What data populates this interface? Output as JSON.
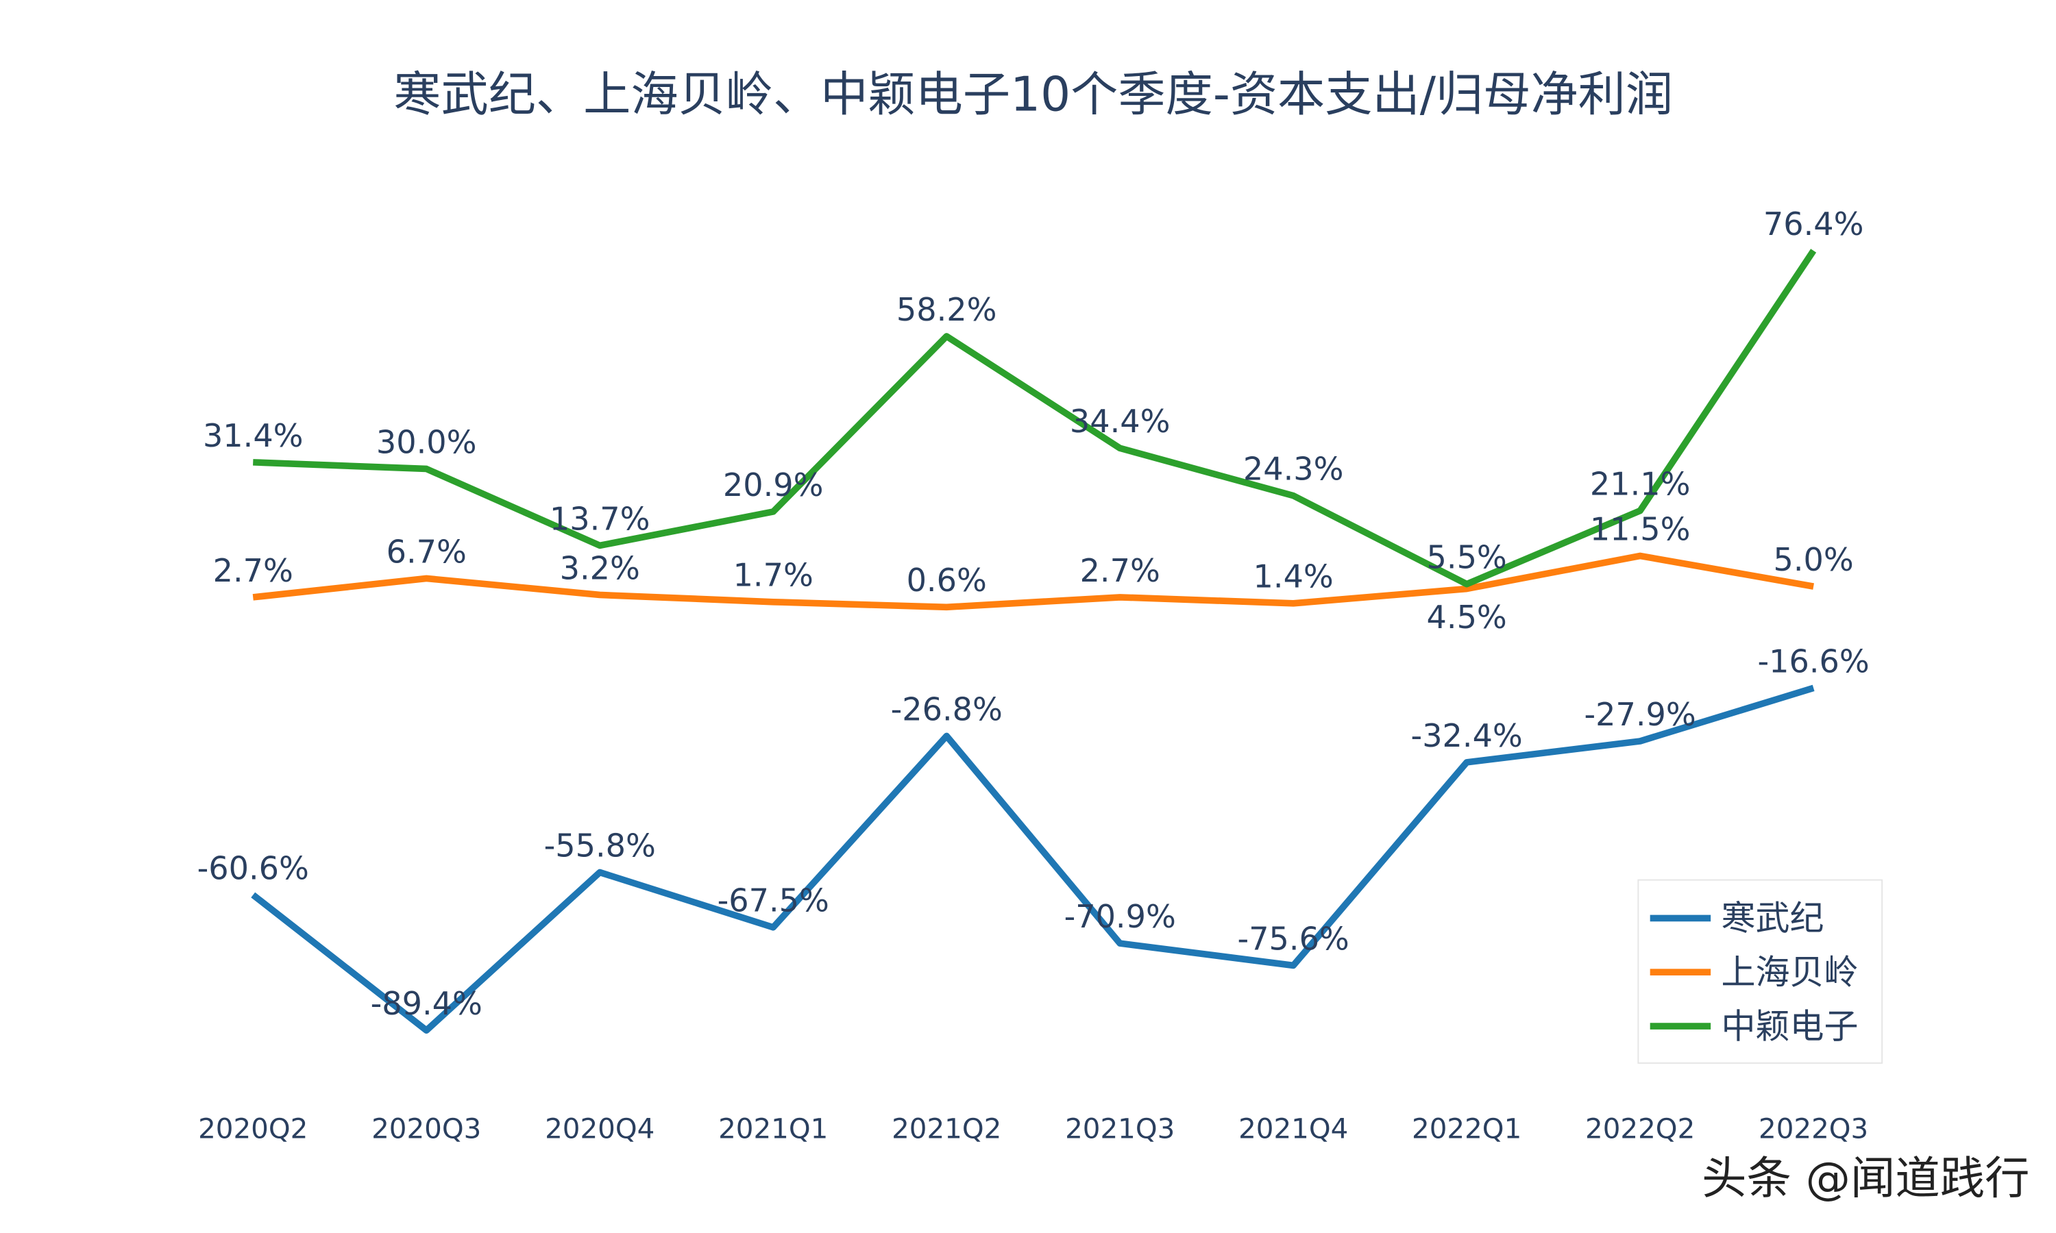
{
  "chart_data": {
    "type": "line",
    "title": "寒武纪、上海贝岭、中颖电子10个季度-资本支出/归母净利润",
    "xlabel": "",
    "ylabel": "",
    "categories": [
      "2020Q2",
      "2020Q3",
      "2020Q4",
      "2021Q1",
      "2021Q2",
      "2021Q3",
      "2021Q4",
      "2022Q1",
      "2022Q2",
      "2022Q3"
    ],
    "ylim": [
      -100,
      85
    ],
    "value_suffix": "%",
    "grid": false,
    "legend_position": "bottom-right",
    "series": [
      {
        "name": "寒武纪",
        "color": "#1f77b4",
        "values": [
          -60.6,
          -89.4,
          -55.8,
          -67.5,
          -26.8,
          -70.9,
          -75.6,
          -32.4,
          -27.9,
          -16.6
        ]
      },
      {
        "name": "上海贝岭",
        "color": "#ff7f0e",
        "values": [
          2.7,
          6.7,
          3.2,
          1.7,
          0.6,
          2.7,
          1.4,
          4.5,
          11.5,
          5.0
        ]
      },
      {
        "name": "中颖电子",
        "color": "#2ca02c",
        "values": [
          31.4,
          30.0,
          13.7,
          20.9,
          58.2,
          34.4,
          24.3,
          5.5,
          21.1,
          76.4
        ]
      }
    ]
  },
  "watermark": "头条 @闻道践行"
}
